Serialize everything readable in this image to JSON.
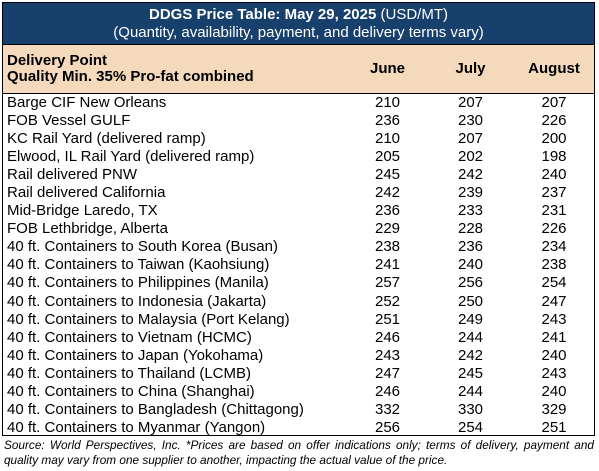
{
  "chart_data": {
    "type": "table",
    "title": "DDGS Price Table: May 29, 2025",
    "title_unit": "(USD/MT)",
    "subtitle": "(Quantity, availability, payment, and delivery terms vary)",
    "header": {
      "point_line1": "Delivery Point",
      "point_line2": "Quality Min. 35% Pro-fat combined",
      "months": [
        "June",
        "July",
        "August"
      ]
    },
    "rows": [
      {
        "point": "Barge CIF New Orleans",
        "values": [
          210,
          207,
          207
        ]
      },
      {
        "point": "FOB Vessel GULF",
        "values": [
          236,
          230,
          226
        ]
      },
      {
        "point": "KC Rail Yard (delivered ramp)",
        "values": [
          210,
          207,
          200
        ]
      },
      {
        "point": "Elwood, IL Rail Yard (delivered ramp)",
        "values": [
          205,
          202,
          198
        ]
      },
      {
        "point": "Rail delivered PNW",
        "values": [
          245,
          242,
          240
        ]
      },
      {
        "point": "Rail delivered California",
        "values": [
          242,
          239,
          237
        ]
      },
      {
        "point": "Mid-Bridge Laredo, TX",
        "values": [
          236,
          233,
          231
        ]
      },
      {
        "point": "FOB Lethbridge, Alberta",
        "values": [
          229,
          228,
          226
        ]
      },
      {
        "point": "40 ft. Containers to South Korea (Busan)",
        "values": [
          238,
          236,
          234
        ]
      },
      {
        "point": "40 ft. Containers to Taiwan (Kaohsiung)",
        "values": [
          241,
          240,
          238
        ]
      },
      {
        "point": "40 ft. Containers to Philippines (Manila)",
        "values": [
          257,
          256,
          254
        ]
      },
      {
        "point": "40 ft. Containers to Indonesia (Jakarta)",
        "values": [
          252,
          250,
          247
        ]
      },
      {
        "point": "40 ft. Containers to Malaysia (Port Kelang)",
        "values": [
          251,
          249,
          243
        ]
      },
      {
        "point": "40 ft. Containers to Vietnam (HCMC)",
        "values": [
          246,
          244,
          241
        ]
      },
      {
        "point": "40 ft. Containers to Japan (Yokohama)",
        "values": [
          243,
          242,
          240
        ]
      },
      {
        "point": "40 ft. Containers to Thailand (LCMB)",
        "values": [
          247,
          245,
          243
        ]
      },
      {
        "point": "40 ft. Containers to China (Shanghai)",
        "values": [
          246,
          244,
          240
        ]
      },
      {
        "point": "40 ft. Containers to Bangladesh (Chittagong)",
        "values": [
          332,
          330,
          329
        ]
      },
      {
        "point": "40 ft. Containers to Myanmar (Yangon)",
        "values": [
          256,
          254,
          251
        ]
      }
    ],
    "source": "Source: World Perspectives, Inc. *Prices are based on offer indications only; terms of delivery, payment and quality may vary from one supplier to another, impacting the actual value of the price."
  },
  "colors": {
    "title_band": "#17406d",
    "header_band": "#f4d9bc"
  }
}
